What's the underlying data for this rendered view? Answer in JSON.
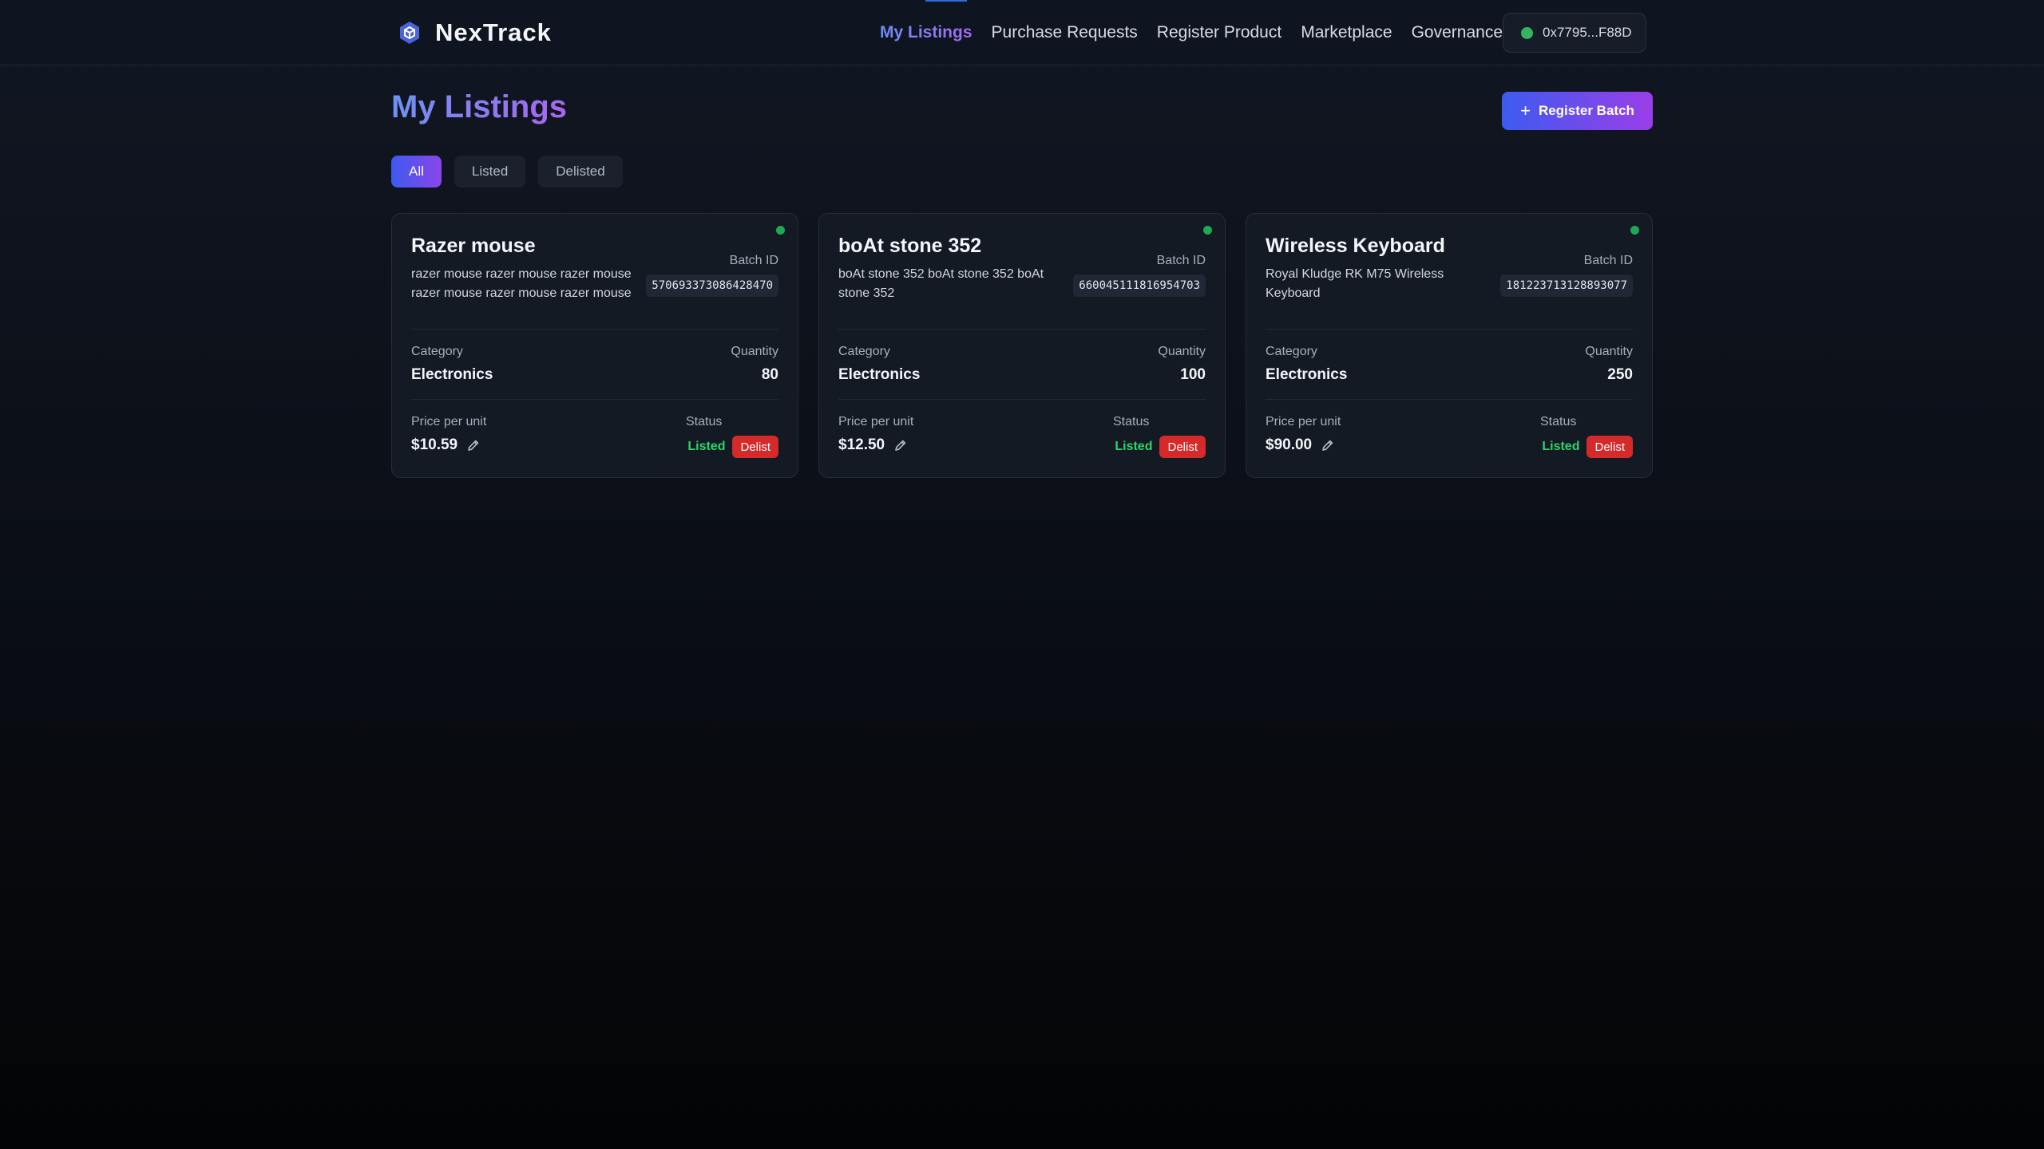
{
  "app": {
    "name": "NexTrack"
  },
  "nav": {
    "items": [
      {
        "label": "My Listings",
        "active": true
      },
      {
        "label": "Purchase Requests"
      },
      {
        "label": "Register Product"
      },
      {
        "label": "Marketplace"
      },
      {
        "label": "Governance"
      }
    ]
  },
  "wallet": {
    "address": "0x7795...F88D",
    "status_color": "#35b45f"
  },
  "page": {
    "title": "My Listings",
    "register_label": "Register Batch"
  },
  "filters": [
    {
      "label": "All",
      "active": true
    },
    {
      "label": "Listed"
    },
    {
      "label": "Delisted"
    }
  ],
  "labels": {
    "batch_id": "Batch ID",
    "category": "Category",
    "quantity": "Quantity",
    "price": "Price per unit",
    "status": "Status",
    "delist": "Delist"
  },
  "listings": [
    {
      "name": "Razer mouse",
      "description": "razer mouse razer mouse razer mouse razer mouse razer mouse razer mouse",
      "batch_id": "570693373086428470",
      "category": "Electronics",
      "quantity": "80",
      "price": "$10.59",
      "status": "Listed"
    },
    {
      "name": "boAt stone 352",
      "description": "boAt stone 352 boAt stone 352 boAt stone 352",
      "batch_id": "660045111816954703",
      "category": "Electronics",
      "quantity": "100",
      "price": "$12.50",
      "status": "Listed"
    },
    {
      "name": "Wireless Keyboard",
      "description": "Royal Kludge RK M75 Wireless Keyboard",
      "batch_id": "181223713128893077",
      "category": "Electronics",
      "quantity": "250",
      "price": "$90.00",
      "status": "Listed"
    }
  ],
  "colors": {
    "accent_start": "#3d5bf0",
    "accent_end": "#9a3ee8",
    "listed": "#2fd36a",
    "delist": "#d42a2a"
  }
}
